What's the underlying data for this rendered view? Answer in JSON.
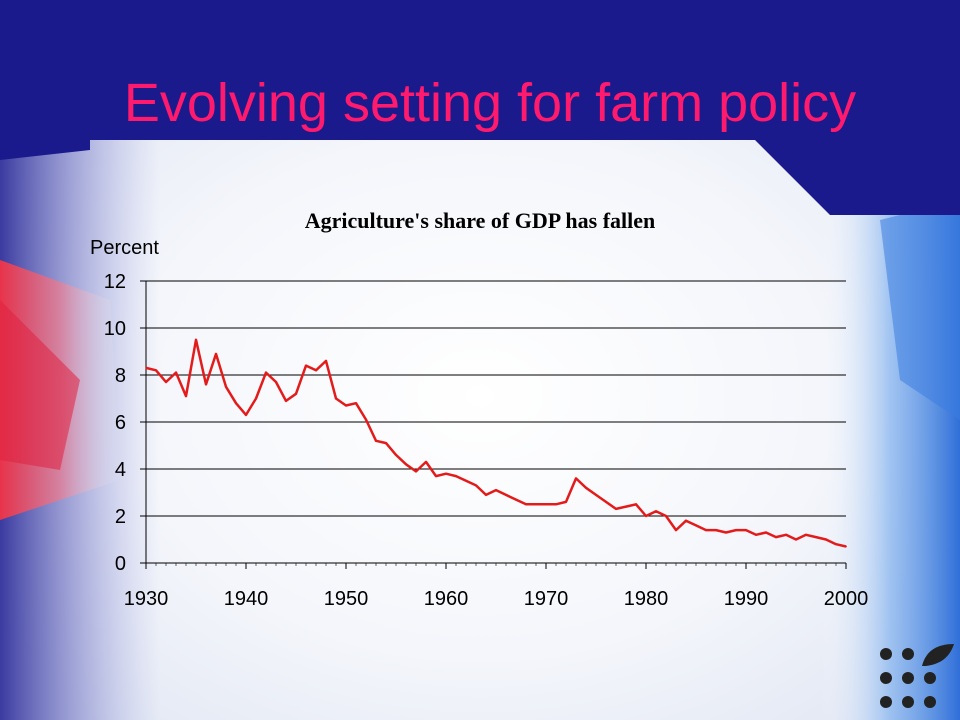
{
  "slide": {
    "title": "Evolving setting for farm policy"
  },
  "colors": {
    "banner": "#1a1a8c",
    "title": "#ff1a6e",
    "line": "#e31b1b",
    "logo_dots": "#222222"
  },
  "icons": {
    "logo": "dots-leaf-logo-icon"
  },
  "chart_data": {
    "type": "line",
    "title": "Agriculture's share of GDP has fallen",
    "ylabel": "Percent",
    "xlabel": "",
    "xlim": [
      1930,
      2000
    ],
    "ylim": [
      0,
      12
    ],
    "x_ticks": [
      1930,
      1940,
      1950,
      1960,
      1970,
      1980,
      1990,
      2000
    ],
    "y_ticks": [
      0,
      2,
      4,
      6,
      8,
      10,
      12
    ],
    "grid": true,
    "series": [
      {
        "name": "",
        "x": [
          1930,
          1931,
          1932,
          1933,
          1934,
          1935,
          1936,
          1937,
          1938,
          1939,
          1940,
          1941,
          1942,
          1943,
          1944,
          1945,
          1946,
          1947,
          1948,
          1949,
          1950,
          1951,
          1952,
          1953,
          1954,
          1955,
          1956,
          1957,
          1958,
          1959,
          1960,
          1961,
          1962,
          1963,
          1964,
          1965,
          1966,
          1967,
          1968,
          1969,
          1970,
          1971,
          1972,
          1973,
          1974,
          1975,
          1976,
          1977,
          1978,
          1979,
          1980,
          1981,
          1982,
          1983,
          1984,
          1985,
          1986,
          1987,
          1988,
          1989,
          1990,
          1991,
          1992,
          1993,
          1994,
          1995,
          1996,
          1997,
          1998,
          1999,
          2000
        ],
        "y": [
          8.3,
          8.2,
          7.7,
          8.1,
          7.1,
          9.5,
          7.6,
          8.9,
          7.5,
          6.8,
          6.3,
          7.0,
          8.1,
          7.7,
          6.9,
          7.2,
          8.4,
          8.2,
          8.6,
          7.0,
          6.7,
          6.8,
          6.1,
          5.2,
          5.1,
          4.6,
          4.2,
          3.9,
          4.3,
          3.7,
          3.8,
          3.7,
          3.5,
          3.3,
          2.9,
          3.1,
          2.9,
          2.7,
          2.5,
          2.5,
          2.5,
          2.5,
          2.6,
          3.6,
          3.2,
          2.9,
          2.6,
          2.3,
          2.4,
          2.5,
          2.0,
          2.2,
          2.0,
          1.4,
          1.8,
          1.6,
          1.4,
          1.4,
          1.3,
          1.4,
          1.4,
          1.2,
          1.3,
          1.1,
          1.2,
          1.0,
          1.2,
          1.1,
          1.0,
          0.8,
          0.7
        ]
      }
    ]
  }
}
